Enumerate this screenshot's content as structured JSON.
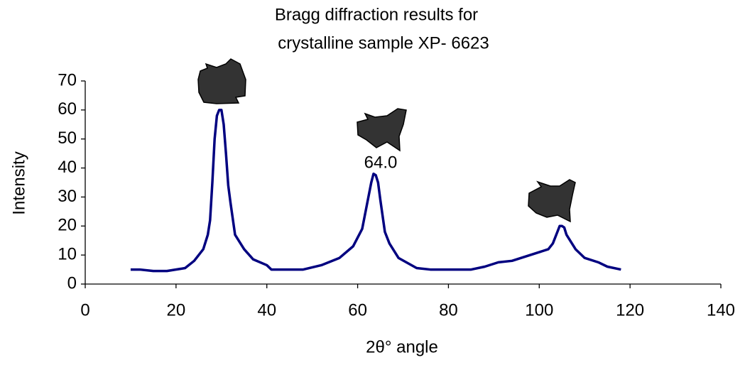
{
  "chart_data": {
    "type": "line",
    "title": [
      "Bragg diffraction results for",
      "crystalline sample XP- 6623"
    ],
    "x_label": "2θ° angle",
    "y_label": "Intensity",
    "annotation": "64.0",
    "xlim": [
      0,
      140
    ],
    "xticks": [
      0,
      20,
      40,
      60,
      80,
      100,
      120,
      140
    ],
    "ylim": [
      0,
      70
    ],
    "yticks": [
      0,
      10,
      20,
      30,
      40,
      50,
      60,
      70
    ],
    "grid": false,
    "series": [
      {
        "name": "Intensity",
        "color": "#000080",
        "x": [
          10,
          12,
          15,
          18,
          22,
          24,
          26,
          27,
          27.5,
          28,
          28.5,
          29,
          29.5,
          30,
          30.5,
          31,
          31.5,
          32,
          33,
          35,
          37,
          40,
          41,
          45,
          48,
          52,
          56,
          59,
          61,
          62,
          63,
          63.5,
          64,
          64.5,
          65,
          66,
          67,
          69,
          73,
          76,
          85,
          88,
          91,
          94,
          97,
          100,
          102,
          103,
          104,
          104.5,
          105,
          105.5,
          106,
          108,
          110,
          113,
          115,
          118
        ],
        "values": [
          5,
          5,
          4.5,
          4.5,
          5.5,
          8,
          12,
          17,
          22,
          35,
          50,
          58,
          60,
          60,
          55,
          45,
          34,
          28,
          17,
          12,
          8.5,
          6.5,
          5,
          5,
          5,
          6.5,
          9,
          13,
          19,
          27,
          35,
          38,
          37.5,
          35,
          29,
          18,
          14,
          9,
          5.5,
          5,
          5,
          6,
          7.5,
          8,
          9.5,
          11,
          12,
          14,
          18,
          20,
          20,
          19.5,
          17,
          12,
          9,
          7.5,
          6,
          5
        ]
      }
    ]
  }
}
